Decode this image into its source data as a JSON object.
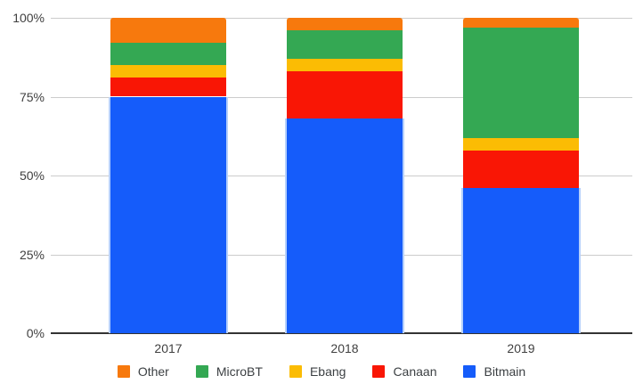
{
  "chart_data": {
    "type": "bar",
    "stacked": true,
    "percent_stacked": true,
    "title": "",
    "xlabel": "",
    "ylabel": "",
    "categories": [
      "2017",
      "2018",
      "2019"
    ],
    "series": [
      {
        "name": "Bitmain",
        "color": "#155CFA",
        "edge_color": "#B6D0FB",
        "values": [
          75,
          68,
          46
        ]
      },
      {
        "name": "Canaan",
        "color": "#F91605",
        "values": [
          6,
          15,
          12
        ]
      },
      {
        "name": "Ebang",
        "color": "#FBBC04",
        "values": [
          4,
          4,
          4
        ]
      },
      {
        "name": "MicroBT",
        "color": "#34A853",
        "values": [
          7,
          9,
          35
        ]
      },
      {
        "name": "Other",
        "color": "#F7790D",
        "values": [
          8,
          4,
          3
        ]
      }
    ],
    "legend": {
      "position": "bottom",
      "items": [
        "Other",
        "MicroBT",
        "Ebang",
        "Canaan",
        "Bitmain"
      ]
    },
    "y_ticks": [
      {
        "value": 0,
        "label": "0%"
      },
      {
        "value": 25,
        "label": "25%"
      },
      {
        "value": 50,
        "label": "50%"
      },
      {
        "value": 75,
        "label": "75%"
      },
      {
        "value": 100,
        "label": "100%"
      }
    ],
    "ylim": [
      0,
      100
    ],
    "grid": true,
    "colors": {
      "gridline": "#cccccc",
      "axis_line": "#333333",
      "tick_label": "#404040",
      "legend_label": "#3c4043",
      "background": "#ffffff"
    }
  }
}
